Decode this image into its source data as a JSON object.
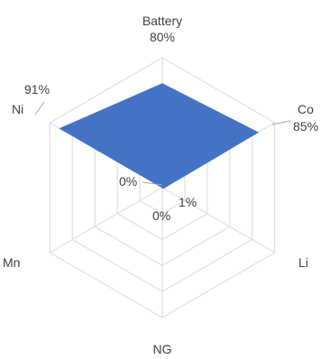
{
  "chart_data": {
    "type": "radar",
    "categories": [
      "Battery",
      "Co",
      "Li",
      "NG",
      "Mn",
      "Ni"
    ],
    "series": [
      {
        "values": [
          80,
          85,
          1,
          0,
          0,
          91
        ],
        "value_labels": [
          "80%",
          "85%",
          "1%",
          "0%",
          "0%",
          "91%"
        ],
        "color": "#4472C4"
      }
    ],
    "rlim": [
      0,
      100
    ],
    "grid_rings": 5,
    "grid": true,
    "grid_color": "#D9D9D9",
    "legend": "none"
  }
}
